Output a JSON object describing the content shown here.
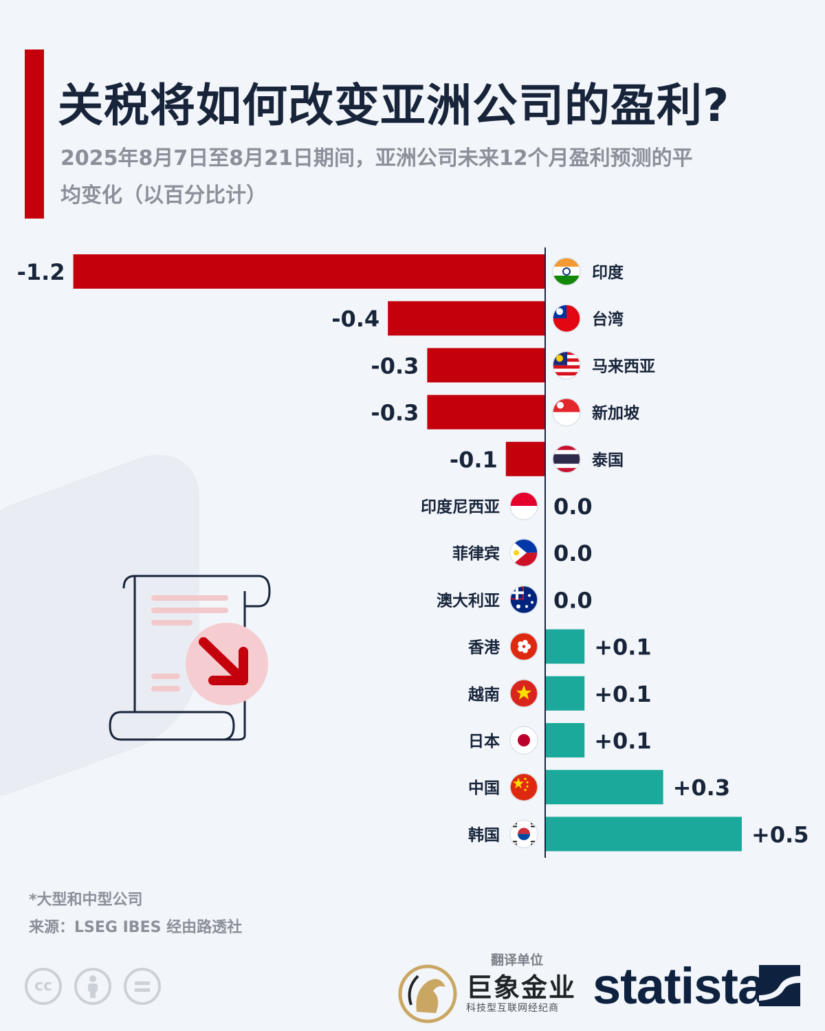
{
  "title": "关税将如何改变亚洲公司的盈利?",
  "subtitle": "2025年8月7日至8月21日期间，亚洲公司未来12个月盈利预测的平均变化（以百分比计）",
  "colors": {
    "negative": "#c4000c",
    "positive": "#1aa99b",
    "accent": "#c4000c",
    "axis": "#17243a"
  },
  "chart_data": {
    "type": "bar",
    "orientation": "horizontal",
    "categories": [
      "印度",
      "台湾",
      "马来西亚",
      "新加坡",
      "泰国",
      "印度尼西亚",
      "菲律宾",
      "澳大利亚",
      "香港",
      "越南",
      "日本",
      "中国",
      "韩国"
    ],
    "values": [
      -1.2,
      -0.4,
      -0.3,
      -0.3,
      -0.1,
      0.0,
      0.0,
      0.0,
      0.1,
      0.1,
      0.1,
      0.3,
      0.5
    ],
    "value_labels": [
      "-1.2",
      "-0.4",
      "-0.3",
      "-0.3",
      "-0.1",
      "0.0",
      "0.0",
      "0.0",
      "+0.1",
      "+0.1",
      "+0.1",
      "+0.3",
      "+0.5"
    ],
    "flags": [
      "india-flag-icon",
      "taiwan-flag-icon",
      "malaysia-flag-icon",
      "singapore-flag-icon",
      "thailand-flag-icon",
      "indonesia-flag-icon",
      "philippines-flag-icon",
      "australia-flag-icon",
      "hongkong-flag-icon",
      "vietnam-flag-icon",
      "japan-flag-icon",
      "china-flag-icon",
      "korea-flag-icon"
    ],
    "xlim": [
      -1.2,
      0.5
    ],
    "title": "",
    "xlabel": "",
    "ylabel": "",
    "grid": false,
    "legend": "none"
  },
  "footnote": {
    "note": "*大型和中型公司",
    "source": "来源：LSEG IBES 经由路透社"
  },
  "license_icons": [
    "cc-icon",
    "attribution-icon",
    "no-derivatives-icon"
  ],
  "translator": {
    "label": "翻译单位",
    "name": "巨象金业",
    "tagline": "科技型互联网经纪商"
  },
  "brand": "statista"
}
